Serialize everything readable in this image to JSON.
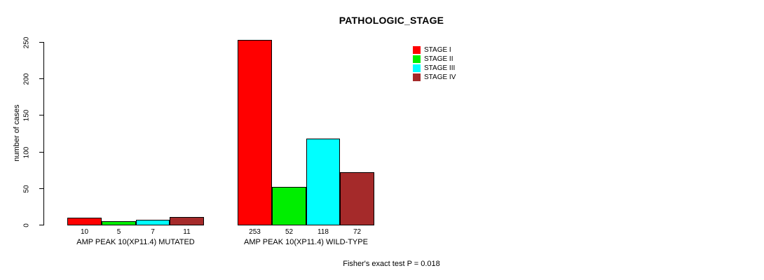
{
  "footer": {
    "text": "Fisher's exact test P = 0.018"
  },
  "chart_data": {
    "type": "bar",
    "title": "PATHOLOGIC_STAGE",
    "xlabel": "",
    "ylabel": "number of cases",
    "ylim": [
      0,
      250
    ],
    "yticks": [
      0,
      50,
      100,
      150,
      200,
      250
    ],
    "grid": false,
    "legend_position": "top-right-inside",
    "bar_value_labels_shown": true,
    "categories": [
      "AMP PEAK 10(XP11.4) MUTATED",
      "AMP PEAK 10(XP11.4) WILD-TYPE"
    ],
    "series": [
      {
        "name": "STAGE I",
        "color": "#ff0000",
        "values": [
          10,
          253
        ]
      },
      {
        "name": "STAGE II",
        "color": "#00ee00",
        "values": [
          5,
          52
        ]
      },
      {
        "name": "STAGE III",
        "color": "#00ffff",
        "values": [
          7,
          118
        ]
      },
      {
        "name": "STAGE IV",
        "color": "#a52a2a",
        "values": [
          11,
          72
        ]
      }
    ],
    "annotation": "Fisher's exact test P = 0.018"
  }
}
